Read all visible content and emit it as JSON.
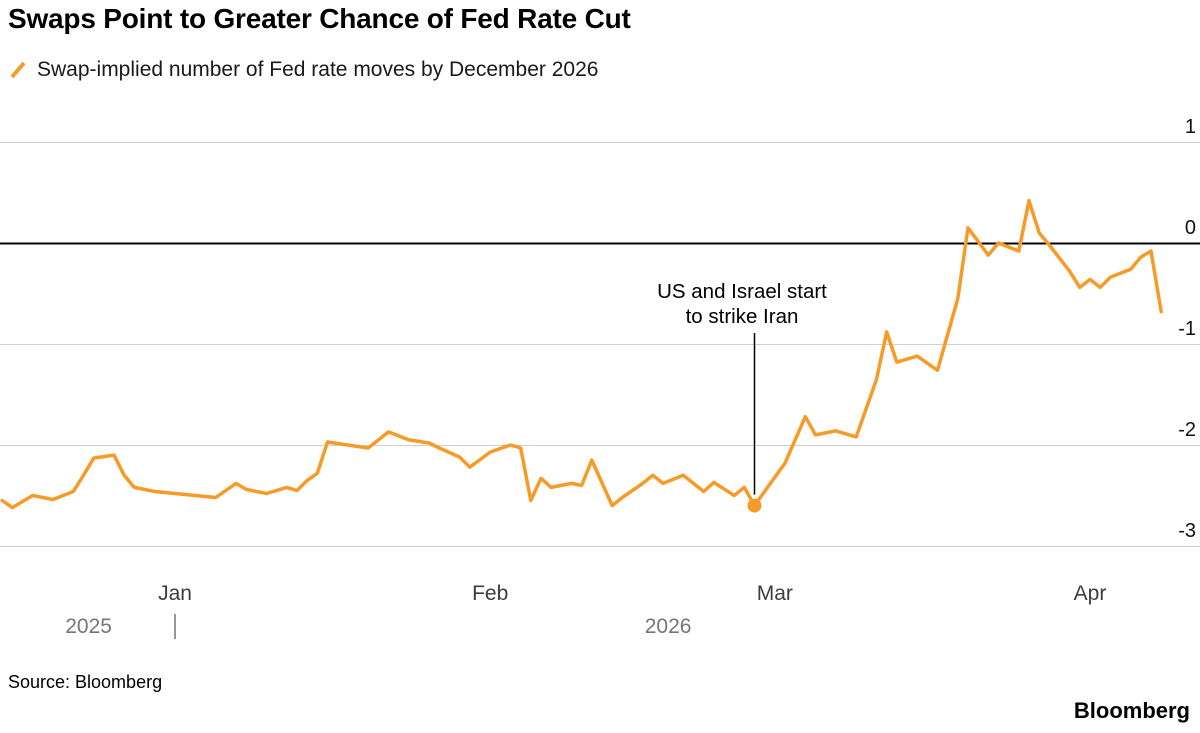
{
  "header": {
    "title": "Swaps Point to Greater Chance of Fed Rate Cut",
    "legend": {
      "swatch": "orange-slash-icon",
      "label": "Swap-implied number of Fed rate moves by December 2026"
    }
  },
  "chart_data": {
    "type": "line",
    "title": "Swap-implied number of Fed rate moves by December 2026",
    "legend_position": "top-left",
    "grid": "horizontal",
    "y_axis": {
      "side": "right",
      "ticks": [
        1,
        0,
        -1,
        -2,
        -3
      ],
      "range": [
        -3.1,
        1.47
      ],
      "zero_line": true
    },
    "x_axis": {
      "month_ticks": [
        {
          "label": "Jan",
          "date": "2026-01-01"
        },
        {
          "label": "Feb",
          "date": "2026-02-01"
        },
        {
          "label": "Mar",
          "date": "2026-03-01"
        },
        {
          "label": "Apr",
          "date": "2026-04-01"
        }
      ],
      "year_labels": [
        "2025",
        "2026"
      ],
      "year_boundary_date": "2026-01-01"
    },
    "series": [
      {
        "name": "Swap-implied number of Fed rate moves by December 2026",
        "color": "#F79B28",
        "points": [
          [
            "2025-12-15",
            -2.55
          ],
          [
            "2025-12-16",
            -2.62
          ],
          [
            "2025-12-18",
            -2.5
          ],
          [
            "2025-12-20",
            -2.54
          ],
          [
            "2025-12-22",
            -2.46
          ],
          [
            "2025-12-23",
            -2.3
          ],
          [
            "2025-12-24",
            -2.13
          ],
          [
            "2025-12-26",
            -2.1
          ],
          [
            "2025-12-27",
            -2.3
          ],
          [
            "2025-12-28",
            -2.42
          ],
          [
            "2025-12-30",
            -2.46
          ],
          [
            "2026-01-01",
            -2.48
          ],
          [
            "2026-01-03",
            -2.5
          ],
          [
            "2026-01-05",
            -2.52
          ],
          [
            "2026-01-07",
            -2.38
          ],
          [
            "2026-01-08",
            -2.44
          ],
          [
            "2026-01-10",
            -2.48
          ],
          [
            "2026-01-12",
            -2.42
          ],
          [
            "2026-01-13",
            -2.45
          ],
          [
            "2026-01-14",
            -2.35
          ],
          [
            "2026-01-15",
            -2.28
          ],
          [
            "2026-01-16",
            -1.97
          ],
          [
            "2026-01-18",
            -2.0
          ],
          [
            "2026-01-20",
            -2.03
          ],
          [
            "2026-01-22",
            -1.87
          ],
          [
            "2026-01-24",
            -1.95
          ],
          [
            "2026-01-26",
            -1.98
          ],
          [
            "2026-01-27",
            -2.03
          ],
          [
            "2026-01-29",
            -2.12
          ],
          [
            "2026-01-30",
            -2.22
          ],
          [
            "2026-02-01",
            -2.07
          ],
          [
            "2026-02-03",
            -2.0
          ],
          [
            "2026-02-04",
            -2.03
          ],
          [
            "2026-02-05",
            -2.55
          ],
          [
            "2026-02-06",
            -2.33
          ],
          [
            "2026-02-07",
            -2.42
          ],
          [
            "2026-02-09",
            -2.38
          ],
          [
            "2026-02-10",
            -2.4
          ],
          [
            "2026-02-11",
            -2.15
          ],
          [
            "2026-02-13",
            -2.6
          ],
          [
            "2026-02-14",
            -2.52
          ],
          [
            "2026-02-16",
            -2.38
          ],
          [
            "2026-02-17",
            -2.3
          ],
          [
            "2026-02-18",
            -2.38
          ],
          [
            "2026-02-20",
            -2.3
          ],
          [
            "2026-02-22",
            -2.46
          ],
          [
            "2026-02-23",
            -2.37
          ],
          [
            "2026-02-25",
            -2.5
          ],
          [
            "2026-02-26",
            -2.42
          ],
          [
            "2026-02-27",
            -2.6
          ],
          [
            "2026-03-01",
            -2.32
          ],
          [
            "2026-03-02",
            -2.18
          ],
          [
            "2026-03-04",
            -1.72
          ],
          [
            "2026-03-05",
            -1.9
          ],
          [
            "2026-03-07",
            -1.86
          ],
          [
            "2026-03-09",
            -1.92
          ],
          [
            "2026-03-11",
            -1.35
          ],
          [
            "2026-03-12",
            -0.88
          ],
          [
            "2026-03-13",
            -1.18
          ],
          [
            "2026-03-15",
            -1.12
          ],
          [
            "2026-03-17",
            -1.26
          ],
          [
            "2026-03-19",
            -0.55
          ],
          [
            "2026-03-20",
            0.15
          ],
          [
            "2026-03-22",
            -0.12
          ],
          [
            "2026-03-23",
            0.0
          ],
          [
            "2026-03-25",
            -0.08
          ],
          [
            "2026-03-26",
            0.42
          ],
          [
            "2026-03-27",
            0.1
          ],
          [
            "2026-03-28",
            -0.02
          ],
          [
            "2026-03-30",
            -0.28
          ],
          [
            "2026-03-31",
            -0.44
          ],
          [
            "2026-04-01",
            -0.36
          ],
          [
            "2026-04-02",
            -0.44
          ],
          [
            "2026-04-03",
            -0.34
          ],
          [
            "2026-04-05",
            -0.26
          ],
          [
            "2026-04-06",
            -0.14
          ],
          [
            "2026-04-07",
            -0.08
          ],
          [
            "2026-04-08",
            -0.68
          ]
        ]
      }
    ],
    "annotation": {
      "text_lines": [
        "US and Israel start",
        "to strike Iran"
      ],
      "date": "2026-02-27",
      "value": -2.6
    }
  },
  "colors": {
    "accent": "#F79B28",
    "grid": "#CFCFCF",
    "zero_line": "#000000",
    "tick_label": "#111111",
    "month_label": "#3D3D3D",
    "year_label": "#767676"
  },
  "footer": {
    "source": "Source: Bloomberg",
    "brand": "Bloomberg"
  }
}
